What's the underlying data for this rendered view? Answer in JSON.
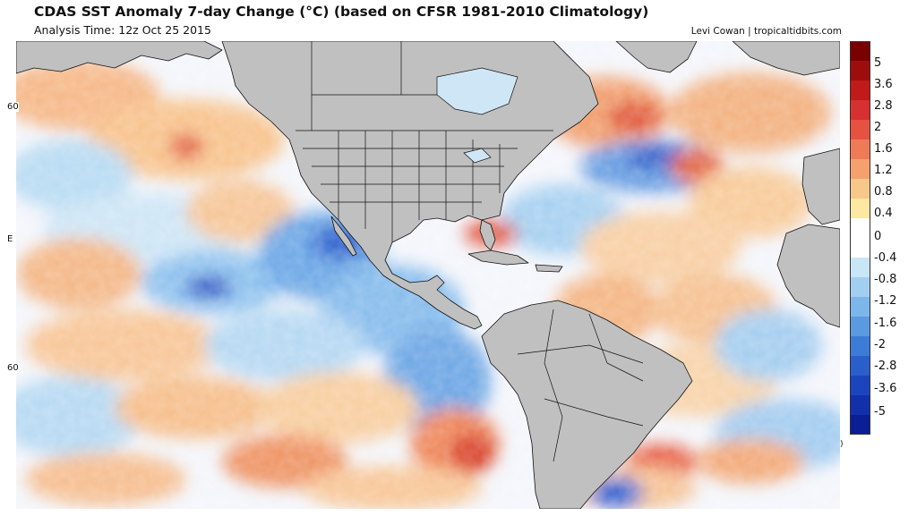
{
  "header": {
    "title": "CDAS SST Anomaly 7-day Change (°C) (based on CFSR 1981-2010 Climatology)",
    "subtitle": "Analysis Time: 12z Oct 25 2015",
    "credit": "Levi Cowan | tropicaltidbits.com"
  },
  "map": {
    "land_color": "#c0c0c0",
    "border_color": "#111111",
    "edge_labels": [
      "60",
      "E",
      "60"
    ],
    "right_edge_label": ")"
  },
  "colorbar": {
    "labels": [
      "5",
      "3.6",
      "2.8",
      "2",
      "1.6",
      "1.2",
      "0.8",
      "0.4",
      "0",
      "-0.4",
      "-0.8",
      "-1.2",
      "-1.6",
      "-2",
      "-2.8",
      "-3.6",
      "-5"
    ],
    "colors": [
      "#7a0000",
      "#9e0d0d",
      "#c01a1a",
      "#d63030",
      "#e65241",
      "#ef7a58",
      "#f6a06e",
      "#f8c78a",
      "#fce8a2",
      "#ffffff",
      "#ffffff",
      "#c9e6f7",
      "#a2cff1",
      "#7db6ea",
      "#5b99e0",
      "#3d7cd6",
      "#2a5fcb",
      "#1c45bd",
      "#1230ab",
      "#0a1e96"
    ]
  }
}
